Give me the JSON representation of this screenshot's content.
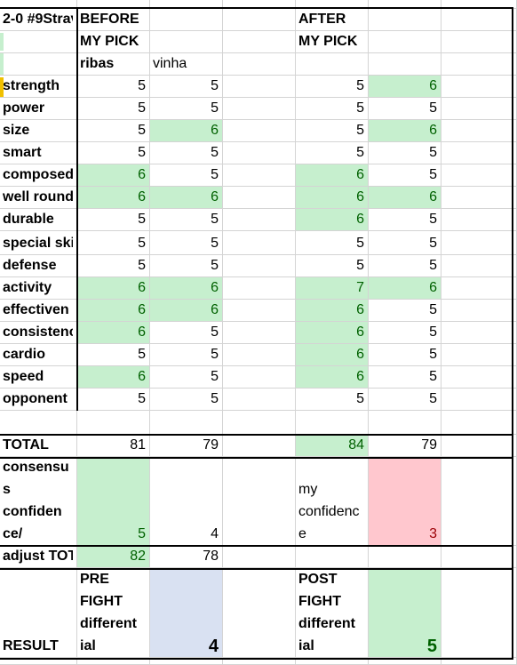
{
  "colors": {
    "good_fill": "#c6efce",
    "good_text": "#006100",
    "bad_fill": "#ffc7ce",
    "bad_text": "#9c0006",
    "neutral_fill": "#d9e1f2",
    "gridline": "#d4d4d4"
  },
  "header": {
    "fight_title": "2-0 #9Strav",
    "before_label": "BEFORE",
    "after_label": "AFTER",
    "my_pick_before": "MY PICK",
    "my_pick_after": "MY PICK",
    "fighter_a": "ribas",
    "fighter_b": "vinha"
  },
  "rows": [
    {
      "label": "strength",
      "b_ribas": "5",
      "b_vinha": "5",
      "a_ribas": "5",
      "a_vinha": "6",
      "hl": [
        false,
        false,
        false,
        true
      ]
    },
    {
      "label": "power",
      "b_ribas": "5",
      "b_vinha": "5",
      "a_ribas": "5",
      "a_vinha": "5",
      "hl": [
        false,
        false,
        false,
        false
      ]
    },
    {
      "label": "size",
      "b_ribas": "5",
      "b_vinha": "6",
      "a_ribas": "5",
      "a_vinha": "6",
      "hl": [
        false,
        true,
        false,
        true
      ]
    },
    {
      "label": "smart",
      "b_ribas": "5",
      "b_vinha": "5",
      "a_ribas": "5",
      "a_vinha": "5",
      "hl": [
        false,
        false,
        false,
        false
      ]
    },
    {
      "label": "composed",
      "b_ribas": "6",
      "b_vinha": "5",
      "a_ribas": "6",
      "a_vinha": "5",
      "hl": [
        true,
        false,
        true,
        false
      ]
    },
    {
      "label": "well round",
      "b_ribas": "6",
      "b_vinha": "6",
      "a_ribas": "6",
      "a_vinha": "6",
      "hl": [
        true,
        true,
        true,
        true
      ]
    },
    {
      "label": "durable",
      "b_ribas": "5",
      "b_vinha": "5",
      "a_ribas": "6",
      "a_vinha": "5",
      "hl": [
        false,
        false,
        true,
        false
      ]
    },
    {
      "label": "special ski",
      "b_ribas": "5",
      "b_vinha": "5",
      "a_ribas": "5",
      "a_vinha": "5",
      "hl": [
        false,
        false,
        false,
        false
      ]
    },
    {
      "label": "defense",
      "b_ribas": "5",
      "b_vinha": "5",
      "a_ribas": "5",
      "a_vinha": "5",
      "hl": [
        false,
        false,
        false,
        false
      ]
    },
    {
      "label": "activity",
      "b_ribas": "6",
      "b_vinha": "6",
      "a_ribas": "7",
      "a_vinha": "6",
      "hl": [
        true,
        true,
        true,
        true
      ]
    },
    {
      "label": "effectiven",
      "b_ribas": "6",
      "b_vinha": "6",
      "a_ribas": "6",
      "a_vinha": "5",
      "hl": [
        true,
        true,
        true,
        false
      ]
    },
    {
      "label": "consistenc",
      "b_ribas": "6",
      "b_vinha": "5",
      "a_ribas": "6",
      "a_vinha": "5",
      "hl": [
        true,
        false,
        true,
        false
      ]
    },
    {
      "label": "cardio",
      "b_ribas": "5",
      "b_vinha": "5",
      "a_ribas": "6",
      "a_vinha": "5",
      "hl": [
        false,
        false,
        true,
        false
      ]
    },
    {
      "label": "speed",
      "b_ribas": "6",
      "b_vinha": "5",
      "a_ribas": "6",
      "a_vinha": "5",
      "hl": [
        true,
        false,
        true,
        false
      ]
    },
    {
      "label": "opponent",
      "b_ribas": "5",
      "b_vinha": "5",
      "a_ribas": "5",
      "a_vinha": "5",
      "hl": [
        false,
        false,
        false,
        false
      ]
    }
  ],
  "total": {
    "label": "TOTAL",
    "b_ribas": "81",
    "b_vinha": "79",
    "a_ribas": "84",
    "a_vinha": "79"
  },
  "confidence": {
    "label_lines": [
      "consensu",
      "s",
      "confiden",
      "ce/"
    ],
    "b_ribas": "5",
    "b_vinha": "4",
    "my_label_lines": [
      "my",
      "confidenc",
      "e"
    ],
    "my_value": "3"
  },
  "adjust": {
    "label": "adjust TOT",
    "b_ribas": "82",
    "b_vinha": "78"
  },
  "result": {
    "label": "RESULT",
    "pre_lines": [
      "PRE",
      "FIGHT",
      "different",
      "ial"
    ],
    "pre_value": "4",
    "post_lines": [
      "POST",
      "FIGHT",
      "different",
      "ial"
    ],
    "post_value": "5"
  }
}
